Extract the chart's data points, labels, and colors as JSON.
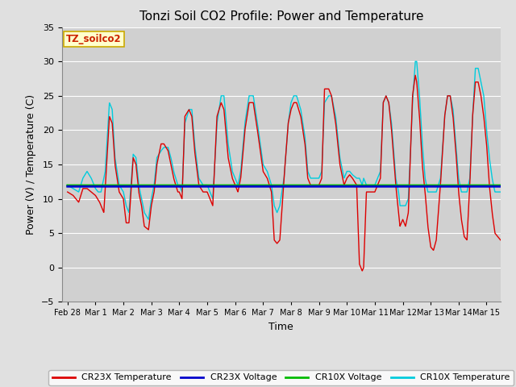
{
  "title": "Tonzi Soil CO2 Profile: Power and Temperature",
  "xlabel": "Time",
  "ylabel": "Power (V) / Temperature (C)",
  "ylim": [
    -5,
    35
  ],
  "yticks": [
    -5,
    0,
    5,
    10,
    15,
    20,
    25,
    30,
    35
  ],
  "fig_facecolor": "#e0e0e0",
  "plot_bg_color": "#d0d0d0",
  "legend_box_color": "#ffffcc",
  "legend_box_edge": "#ccaa00",
  "annotation_text": "TZ_soilco2",
  "annotation_color": "#cc2200",
  "voltage_cr23x": 11.8,
  "voltage_cr10x": 11.95,
  "xtick_labels": [
    "Feb 28",
    "Mar 1",
    "Mar 2",
    "Mar 3",
    "Mar 4",
    "Mar 5",
    "Mar 6",
    "Mar 7",
    "Mar 8",
    "Mar 9",
    "Mar 10",
    "Mar 11",
    "Mar 12",
    "Mar 13",
    "Mar 14",
    "Mar 15"
  ],
  "xtick_positions": [
    0,
    1,
    2,
    3,
    4,
    5,
    6,
    7,
    8,
    9,
    10,
    11,
    12,
    13,
    14,
    15
  ],
  "cr23x_temp_color": "#dd0000",
  "cr23x_volt_color": "#0000cc",
  "cr10x_volt_color": "#00bb00",
  "cr10x_temp_color": "#00ccdd",
  "temp_lw": 1.0,
  "volt_lw": 2.0
}
